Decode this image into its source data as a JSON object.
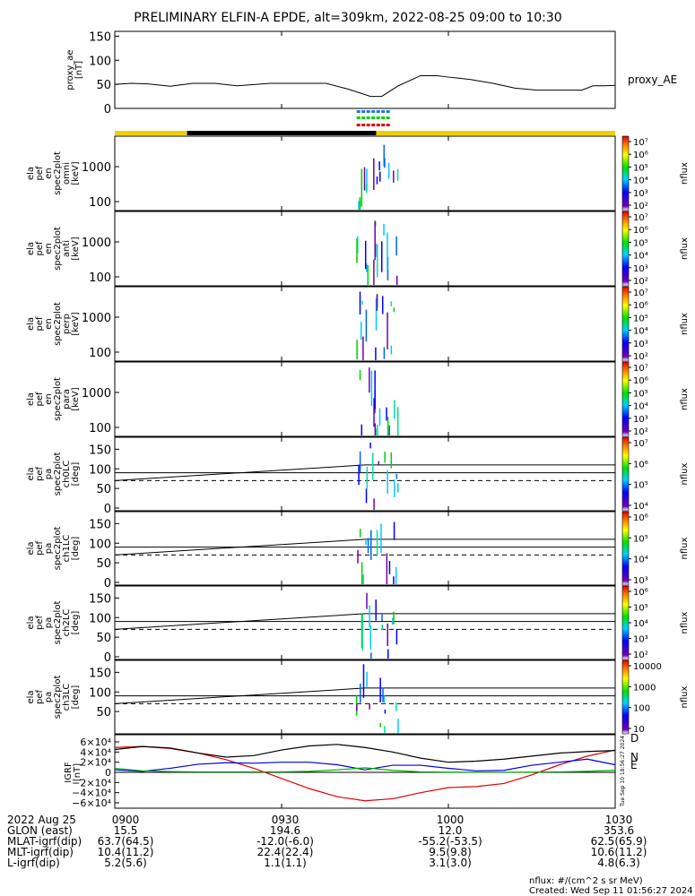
{
  "title": "PRELIMINARY ELFIN-A EPDE, alt=309km, 2022-08-25 09:00 to 10:30",
  "chart_data": {
    "type": "spectrogram-stack",
    "time_range": [
      "2022-08-25 09:00",
      "2022-08-25 10:30"
    ],
    "x_ticks": [
      "0900",
      "0930",
      "1000",
      "1030"
    ],
    "x_tick_minutes": [
      0,
      30,
      60,
      90
    ],
    "proxy_ae": {
      "ylabel": "proxy_ae\n[nT]",
      "legend": "proxy_AE",
      "yticks": [
        0,
        50,
        100,
        150
      ],
      "ylim": [
        0,
        160
      ],
      "minutes": [
        0,
        3,
        6,
        10,
        14,
        18,
        22,
        28,
        30,
        34,
        38,
        42,
        46,
        48,
        51,
        55,
        58,
        60,
        64,
        68,
        72,
        76,
        80,
        84,
        86,
        88,
        90
      ],
      "values": [
        50,
        52,
        51,
        46,
        52,
        52,
        47,
        52,
        52,
        52,
        52,
        40,
        25,
        25,
        47,
        68,
        68,
        65,
        60,
        52,
        42,
        38,
        38,
        38,
        47,
        47,
        48
      ]
    },
    "spectrogram_panels": [
      {
        "ylabel": [
          "ela",
          "pef",
          "en",
          "spec2plot",
          "omni",
          "[keV]"
        ],
        "yticks": [
          "100",
          "1000"
        ],
        "colorbar_ticks": [
          "10⁷",
          "10⁶",
          "10⁵",
          "10⁴",
          "10³",
          "10²"
        ],
        "colorbar_label": "nflux"
      },
      {
        "ylabel": [
          "ela",
          "pef",
          "en",
          "spec2plot",
          "anti",
          "[keV]"
        ],
        "yticks": [
          "100",
          "1000"
        ],
        "colorbar_ticks": [
          "10⁷",
          "10⁶",
          "10⁵",
          "10⁴",
          "10³",
          "10²"
        ],
        "colorbar_label": "nflux"
      },
      {
        "ylabel": [
          "ela",
          "pef",
          "en",
          "spec2plot",
          "perp",
          "[keV]"
        ],
        "yticks": [
          "100",
          "1000"
        ],
        "colorbar_ticks": [
          "10⁷",
          "10⁶",
          "10⁵",
          "10⁴",
          "10³",
          "10²"
        ],
        "colorbar_label": "nflux"
      },
      {
        "ylabel": [
          "ela",
          "pef",
          "en",
          "spec2plot",
          "para",
          "[keV]"
        ],
        "yticks": [
          "100",
          "1000"
        ],
        "colorbar_ticks": [
          "10⁷",
          "10⁶",
          "10⁵",
          "10⁴",
          "10³",
          "10²"
        ],
        "colorbar_label": "nflux"
      }
    ],
    "pitch_panels": [
      {
        "ylabel": [
          "ela",
          "pef",
          "pa",
          "spec2plot",
          "ch0LC",
          "[deg]"
        ],
        "yticks": [
          "0",
          "50",
          "100",
          "150"
        ],
        "colorbar_ticks": [
          "10⁷",
          "10⁶",
          "10⁵",
          "10⁴"
        ],
        "colorbar_label": "nflux"
      },
      {
        "ylabel": [
          "ela",
          "pef",
          "pa",
          "spec2plot",
          "ch1LC",
          "[deg]"
        ],
        "yticks": [
          "0",
          "50",
          "100",
          "150"
        ],
        "colorbar_ticks": [
          "10⁶",
          "10⁵",
          "10⁴",
          "10³"
        ],
        "colorbar_label": "nflux"
      },
      {
        "ylabel": [
          "ela",
          "pef",
          "pa",
          "spec2plot",
          "ch2LC",
          "[deg]"
        ],
        "yticks": [
          "0",
          "50",
          "100",
          "150"
        ],
        "colorbar_ticks": [
          "10⁶",
          "10⁵",
          "10⁴",
          "10³",
          "10²"
        ],
        "colorbar_label": "nflux"
      },
      {
        "ylabel": [
          "ela",
          "pef",
          "pa",
          "spec2plot",
          "ch3LC",
          "[deg]"
        ],
        "yticks": [
          "50",
          "100",
          "150"
        ],
        "colorbar_ticks": [
          "10000",
          "1000",
          "100",
          "10"
        ],
        "colorbar_label": "nflux"
      }
    ],
    "igrf": {
      "ylabel": [
        "IGRF",
        "[nT]"
      ],
      "yticks": [
        "6×10⁴",
        "4×10⁴",
        "2×10⁴",
        "0",
        "−2×10⁴",
        "−4×10⁴",
        "−6×10⁴"
      ],
      "ytick_values": [
        60000,
        40000,
        20000,
        0,
        -20000,
        -40000,
        -60000
      ],
      "legend": [
        "D",
        "N",
        "E"
      ],
      "legend_colors": [
        "#e00000",
        "#0000dd",
        "#00b000"
      ],
      "series": [
        {
          "name": "D",
          "color": "#e00000",
          "minutes": [
            0,
            5,
            10,
            15,
            20,
            25,
            30,
            35,
            40,
            45,
            50,
            55,
            60,
            65,
            70,
            75,
            80,
            85,
            90
          ],
          "values": [
            49000,
            51000,
            47000,
            38000,
            25000,
            8000,
            -12000,
            -32000,
            -48000,
            -56000,
            -52000,
            -40000,
            -30000,
            -28000,
            -22000,
            -5000,
            15000,
            32000,
            44000
          ]
        },
        {
          "name": "N",
          "color": "#0000dd",
          "minutes": [
            0,
            5,
            10,
            15,
            20,
            25,
            30,
            35,
            40,
            45,
            50,
            55,
            60,
            65,
            70,
            75,
            80,
            85,
            90
          ],
          "values": [
            5000,
            2000,
            8000,
            16000,
            19000,
            18000,
            20000,
            20000,
            15000,
            5000,
            14000,
            14000,
            8000,
            3000,
            4000,
            14000,
            20000,
            26000,
            15000
          ]
        },
        {
          "name": "Btot",
          "color": "#000000",
          "minutes": [
            0,
            5,
            10,
            15,
            20,
            25,
            30,
            35,
            40,
            45,
            50,
            55,
            60,
            65,
            70,
            75,
            80,
            85,
            90
          ],
          "values": [
            45000,
            51000,
            48000,
            38000,
            30000,
            33000,
            44000,
            52000,
            55000,
            49000,
            40000,
            28000,
            20000,
            22000,
            26000,
            32000,
            38000,
            41000,
            43000
          ]
        },
        {
          "name": "E",
          "color": "#00b000",
          "minutes": [
            0,
            5,
            10,
            15,
            20,
            25,
            30,
            35,
            40,
            45,
            50,
            55,
            60,
            65,
            70,
            75,
            80,
            85,
            90
          ],
          "values": [
            8000,
            3000,
            1500,
            1000,
            1000,
            1000,
            1000,
            2000,
            5000,
            9000,
            4000,
            1000,
            500,
            300,
            300,
            500,
            1000,
            2000,
            4000
          ]
        }
      ]
    },
    "side_stamp": "Tue Sep 10 18:56:27 2024"
  },
  "footer": {
    "rows": [
      {
        "label": "2022 Aug 25",
        "values": [
          "0900",
          "0930",
          "1000",
          "1030"
        ]
      },
      {
        "label": "GLON (east)",
        "values": [
          "15.5",
          "194.6",
          "12.0",
          "353.6"
        ]
      },
      {
        "label": "MLAT-igrf(dip)",
        "values": [
          "63.7(64.5)",
          "-12.0(-6.0)",
          "-55.2(-53.5)",
          "62.5(65.9)"
        ]
      },
      {
        "label": "MLT-igrf(dip)",
        "values": [
          "10.4(11.2)",
          "22.4(22.4)",
          "9.5(9.8)",
          "10.6(11.2)"
        ]
      },
      {
        "label": "L-igrf(dip)",
        "values": [
          "5.2(5.6)",
          "1.1(1.1)",
          "3.1(3.0)",
          "4.8(6.3)"
        ]
      }
    ],
    "units": "nflux: #/(cm^2 s sr MeV)",
    "created": "Created: Wed Sep 11 01:56:27 2024"
  }
}
